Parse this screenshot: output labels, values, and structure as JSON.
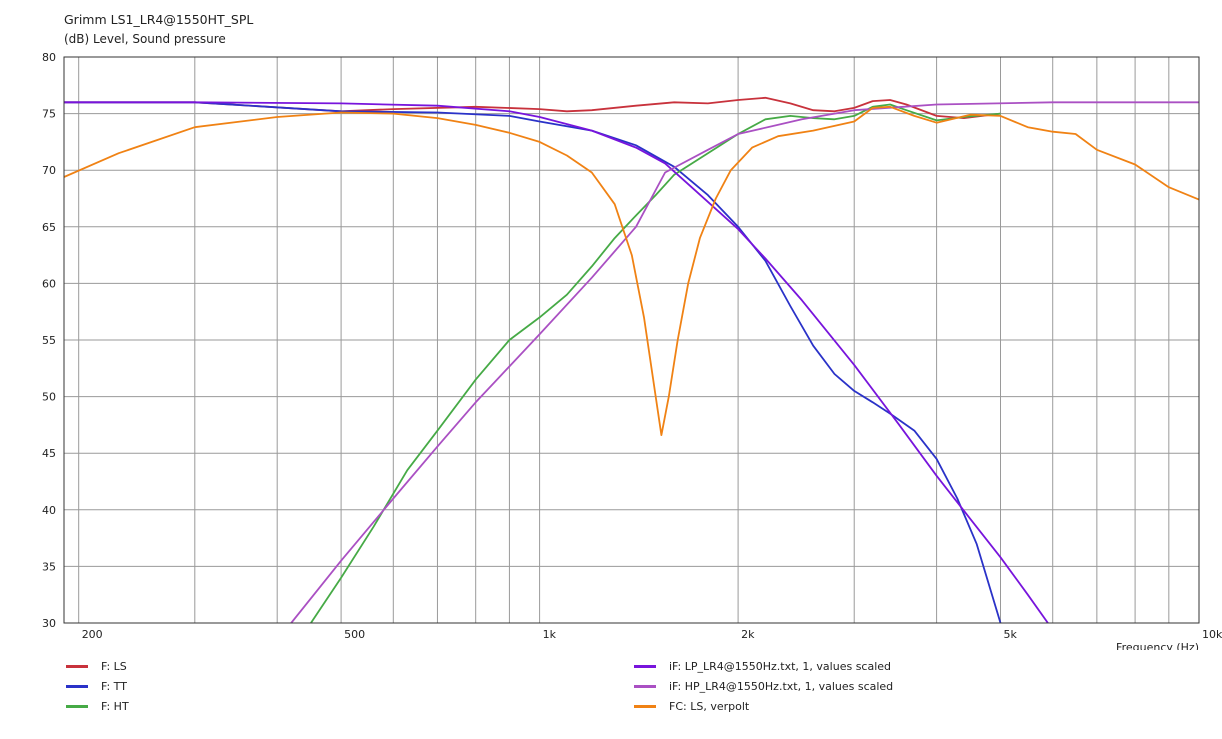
{
  "chart_data": {
    "type": "line",
    "title": "Grimm LS1_LR4@1550HT_SPL",
    "subtitle": "(dB)  Level, Sound pressure",
    "xlabel": "Frequency  (Hz)",
    "xscale": "log",
    "xlim": [
      190,
      10000
    ],
    "ylim": [
      30,
      80
    ],
    "grid": true,
    "legend_position": "bottom",
    "xticks": [
      {
        "value": 200,
        "label": "200"
      },
      {
        "value": 500,
        "label": "500"
      },
      {
        "value": 1000,
        "label": "1k"
      },
      {
        "value": 2000,
        "label": "2k"
      },
      {
        "value": 5000,
        "label": "5k"
      },
      {
        "value": 10000,
        "label": "10k"
      }
    ],
    "yticks": [
      30,
      35,
      40,
      45,
      50,
      55,
      60,
      65,
      70,
      75,
      80
    ],
    "series": [
      {
        "name": "F: LS",
        "color": "#c8323c",
        "points": [
          [
            190,
            76.0
          ],
          [
            300,
            76.0
          ],
          [
            500,
            75.2
          ],
          [
            600,
            75.4
          ],
          [
            800,
            75.6
          ],
          [
            1000,
            75.4
          ],
          [
            1100,
            75.2
          ],
          [
            1200,
            75.3
          ],
          [
            1400,
            75.7
          ],
          [
            1600,
            76.0
          ],
          [
            1800,
            75.9
          ],
          [
            2000,
            76.2
          ],
          [
            2200,
            76.4
          ],
          [
            2400,
            75.9
          ],
          [
            2600,
            75.3
          ],
          [
            2800,
            75.2
          ],
          [
            3000,
            75.5
          ],
          [
            3200,
            76.1
          ],
          [
            3400,
            76.2
          ],
          [
            3600,
            75.8
          ],
          [
            4000,
            74.8
          ],
          [
            4400,
            74.6
          ],
          [
            5000,
            75.0
          ]
        ]
      },
      {
        "name": "F: TT",
        "color": "#2a32c8",
        "points": [
          [
            190,
            76.0
          ],
          [
            300,
            76.0
          ],
          [
            500,
            75.2
          ],
          [
            700,
            75.1
          ],
          [
            900,
            74.8
          ],
          [
            1000,
            74.3
          ],
          [
            1200,
            73.5
          ],
          [
            1400,
            72.2
          ],
          [
            1600,
            70.3
          ],
          [
            1800,
            67.8
          ],
          [
            2000,
            65.0
          ],
          [
            2200,
            62.0
          ],
          [
            2400,
            58.0
          ],
          [
            2600,
            54.5
          ],
          [
            2800,
            52.0
          ],
          [
            3000,
            50.5
          ],
          [
            3200,
            49.5
          ],
          [
            3400,
            48.5
          ],
          [
            3700,
            47.0
          ],
          [
            4000,
            44.5
          ],
          [
            4300,
            41.0
          ],
          [
            4600,
            37.0
          ],
          [
            5000,
            30.0
          ]
        ]
      },
      {
        "name": "F: HT",
        "color": "#46aa46",
        "points": [
          [
            450,
            30.0
          ],
          [
            500,
            34.0
          ],
          [
            560,
            38.5
          ],
          [
            630,
            43.5
          ],
          [
            700,
            47.0
          ],
          [
            800,
            51.5
          ],
          [
            900,
            55.0
          ],
          [
            1000,
            57.0
          ],
          [
            1100,
            59.0
          ],
          [
            1200,
            61.5
          ],
          [
            1300,
            64.0
          ],
          [
            1400,
            66.0
          ],
          [
            1500,
            67.8
          ],
          [
            1600,
            69.6
          ],
          [
            1800,
            71.5
          ],
          [
            2000,
            73.2
          ],
          [
            2200,
            74.5
          ],
          [
            2400,
            74.8
          ],
          [
            2600,
            74.6
          ],
          [
            2800,
            74.5
          ],
          [
            3000,
            74.8
          ],
          [
            3200,
            75.6
          ],
          [
            3400,
            75.8
          ],
          [
            3600,
            75.3
          ],
          [
            4000,
            74.4
          ],
          [
            4400,
            74.7
          ],
          [
            5000,
            75.0
          ]
        ]
      },
      {
        "name": "iF: LP_LR4@1550Hz.txt, 1, values scaled",
        "color": "#7814dc",
        "points": [
          [
            190,
            76.0
          ],
          [
            300,
            76.0
          ],
          [
            500,
            75.9
          ],
          [
            700,
            75.7
          ],
          [
            900,
            75.2
          ],
          [
            1000,
            74.7
          ],
          [
            1200,
            73.5
          ],
          [
            1400,
            72.0
          ],
          [
            1550,
            70.6
          ],
          [
            1700,
            68.5
          ],
          [
            2000,
            64.8
          ],
          [
            2200,
            62.2
          ],
          [
            2500,
            58.5
          ],
          [
            3000,
            52.8
          ],
          [
            3500,
            47.6
          ],
          [
            4000,
            43.0
          ],
          [
            4500,
            39.2
          ],
          [
            5000,
            35.8
          ],
          [
            5500,
            32.5
          ],
          [
            5900,
            30.0
          ]
        ]
      },
      {
        "name": "iF: HP_LR4@1550Hz.txt, 1, values scaled",
        "color": "#aa50c3",
        "points": [
          [
            420,
            30.0
          ],
          [
            500,
            35.5
          ],
          [
            600,
            41.0
          ],
          [
            700,
            45.6
          ],
          [
            800,
            49.5
          ],
          [
            1000,
            55.5
          ],
          [
            1200,
            60.5
          ],
          [
            1400,
            65.0
          ],
          [
            1550,
            69.8
          ],
          [
            1800,
            71.8
          ],
          [
            2000,
            73.2
          ],
          [
            2500,
            74.5
          ],
          [
            3000,
            75.3
          ],
          [
            4000,
            75.8
          ],
          [
            6000,
            76.0
          ],
          [
            10000,
            76.0
          ]
        ]
      },
      {
        "name": "FC: LS, verpolt",
        "color": "#f08214",
        "points": [
          [
            190,
            69.4
          ],
          [
            230,
            71.5
          ],
          [
            300,
            73.8
          ],
          [
            400,
            74.7
          ],
          [
            500,
            75.1
          ],
          [
            600,
            75.0
          ],
          [
            700,
            74.6
          ],
          [
            800,
            74.0
          ],
          [
            900,
            73.3
          ],
          [
            1000,
            72.5
          ],
          [
            1100,
            71.3
          ],
          [
            1200,
            69.8
          ],
          [
            1300,
            67.0
          ],
          [
            1380,
            62.5
          ],
          [
            1440,
            57.0
          ],
          [
            1500,
            50.0
          ],
          [
            1530,
            46.6
          ],
          [
            1570,
            50.0
          ],
          [
            1620,
            55.0
          ],
          [
            1680,
            60.0
          ],
          [
            1750,
            64.0
          ],
          [
            1850,
            67.5
          ],
          [
            1950,
            70.0
          ],
          [
            2100,
            72.0
          ],
          [
            2300,
            73.0
          ],
          [
            2600,
            73.5
          ],
          [
            3000,
            74.3
          ],
          [
            3200,
            75.5
          ],
          [
            3400,
            75.6
          ],
          [
            3700,
            74.8
          ],
          [
            4000,
            74.2
          ],
          [
            4500,
            74.9
          ],
          [
            5000,
            74.8
          ],
          [
            5500,
            73.8
          ],
          [
            6000,
            73.4
          ],
          [
            6500,
            73.2
          ],
          [
            7000,
            71.8
          ],
          [
            8000,
            70.5
          ],
          [
            9000,
            68.5
          ],
          [
            10000,
            67.4
          ]
        ]
      }
    ]
  }
}
